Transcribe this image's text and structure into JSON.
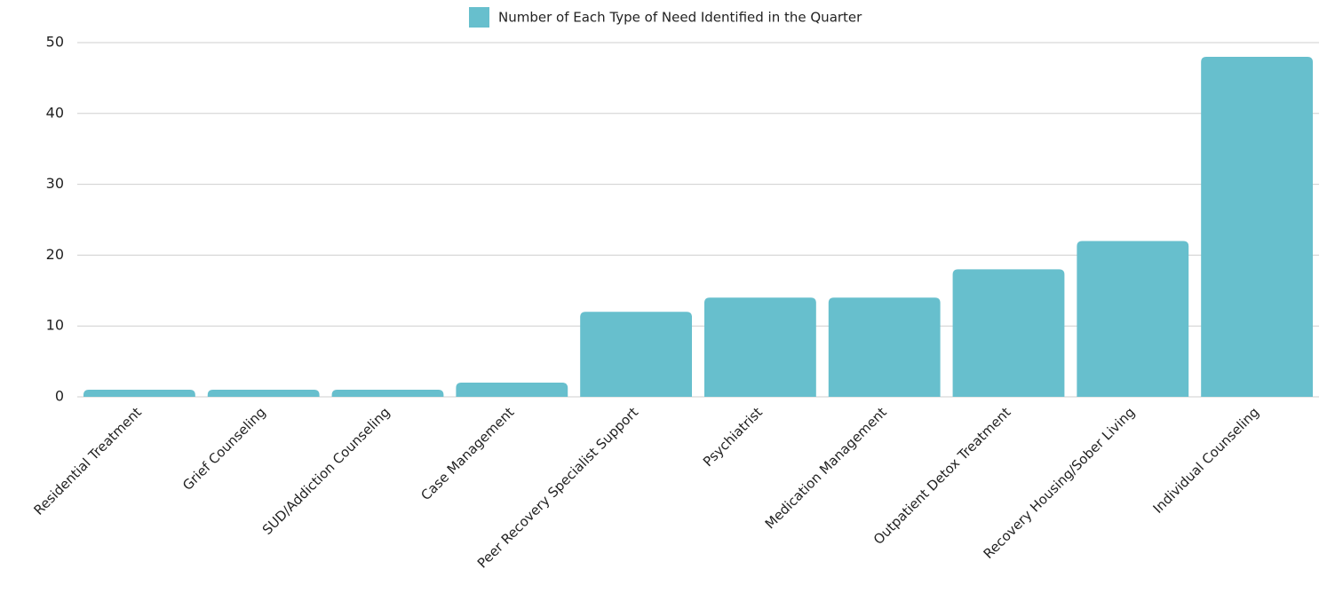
{
  "chart_data": {
    "type": "bar",
    "categories": [
      "Residential Treatment",
      "Grief Counseling",
      "SUD/Addiction Counseling",
      "Case Management",
      "Peer Recovery Specialist Support",
      "Psychiatrist",
      "Medication Management",
      "Outpatient Detox Treatment",
      "Recovery Housing/Sober Living",
      "Individual Counseling"
    ],
    "series": [
      {
        "name": "Number of Each Type of Need Identified in the Quarter",
        "color": "#67bfcd",
        "values": [
          1,
          1,
          1,
          2,
          12,
          14,
          14,
          18,
          22,
          48
        ]
      }
    ],
    "ylim": [
      0,
      50
    ],
    "yticks": [
      0,
      10,
      20,
      30,
      40,
      50
    ],
    "grid": true,
    "legend": "top"
  }
}
